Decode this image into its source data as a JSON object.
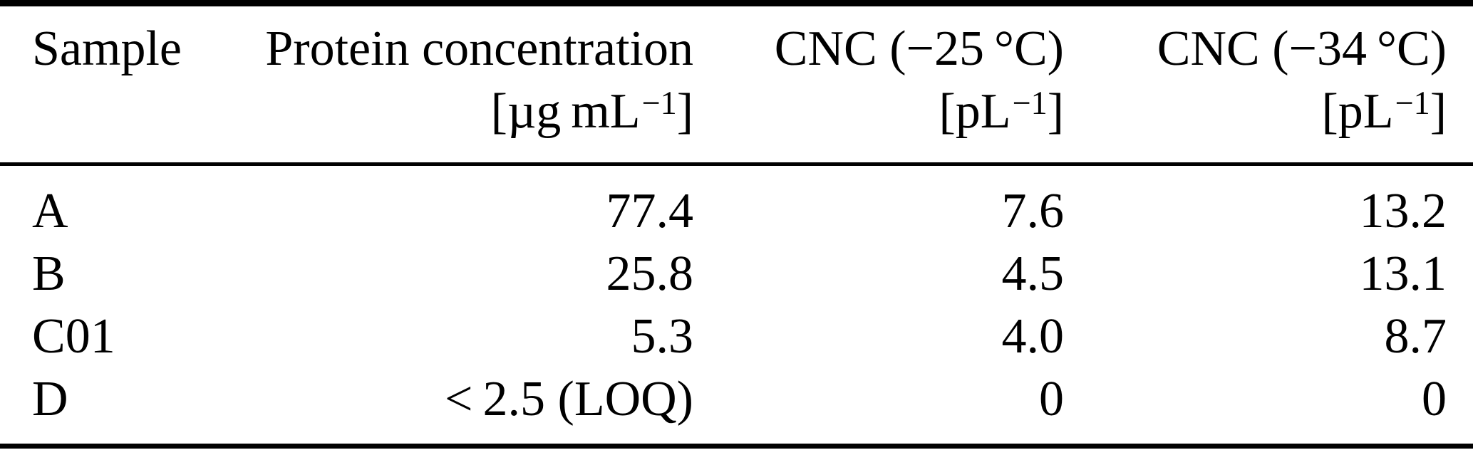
{
  "table": {
    "columns": [
      {
        "title": "Sample",
        "unit_pre": "",
        "unit_sup": "",
        "unit_post": ""
      },
      {
        "title": "Protein concentration",
        "unit_pre": "[µg mL",
        "unit_sup": "−1",
        "unit_post": "]"
      },
      {
        "title": "CNC (−25 °C)",
        "unit_pre": "[pL",
        "unit_sup": "−1",
        "unit_post": "]"
      },
      {
        "title": "CNC (−34 °C)",
        "unit_pre": "[pL",
        "unit_sup": "−1",
        "unit_post": "]"
      }
    ],
    "rows": [
      {
        "sample": "A",
        "protein": "77.4",
        "cnc25": "7.6",
        "cnc34": "13.2"
      },
      {
        "sample": "B",
        "protein": "25.8",
        "cnc25": "4.5",
        "cnc34": "13.1"
      },
      {
        "sample": "C01",
        "protein": "5.3",
        "cnc25": "4.0",
        "cnc34": "8.7"
      },
      {
        "sample": "D",
        "protein": "< 2.5 (LOQ)",
        "cnc25": "0",
        "cnc34": "0"
      }
    ]
  },
  "colors": {
    "text": "#000000",
    "background": "#ffffff",
    "rule": "#000000"
  },
  "chart_data": {
    "type": "table",
    "columns": [
      "Sample",
      "Protein concentration [µg mL−1]",
      "CNC (−25 °C) [pL−1]",
      "CNC (−34 °C) [pL−1]"
    ],
    "rows": [
      [
        "A",
        "77.4",
        "7.6",
        "13.2"
      ],
      [
        "B",
        "25.8",
        "4.5",
        "13.1"
      ],
      [
        "C01",
        "5.3",
        "4.0",
        "8.7"
      ],
      [
        "D",
        "< 2.5 (LOQ)",
        "0",
        "0"
      ]
    ]
  }
}
